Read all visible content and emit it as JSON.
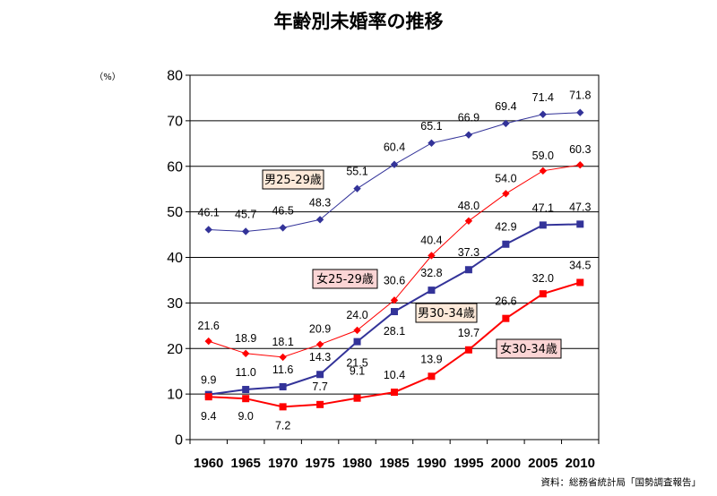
{
  "chart_data": {
    "type": "line",
    "title": "年齢別未婚率の推移",
    "unit": "（%）",
    "source": "資料：総務省統計局「国勢調査報告」",
    "ylim": [
      0,
      80
    ],
    "yticks": [
      "0",
      "10",
      "20",
      "30",
      "40",
      "50",
      "60",
      "70",
      "80"
    ],
    "grid": true,
    "categories": [
      "1960",
      "1965",
      "1970",
      "1975",
      "1980",
      "1985",
      "1990",
      "1995",
      "2000",
      "2005",
      "2010"
    ],
    "series": [
      {
        "name": "男25-29歳",
        "color": "#333399",
        "marker": "diamond",
        "line_width": 1,
        "label_bg": "#fde9d9",
        "values": [
          46.1,
          45.7,
          46.5,
          48.3,
          55.1,
          60.4,
          65.1,
          66.9,
          69.4,
          71.4,
          71.8
        ],
        "labels": [
          "46.1",
          "45.7",
          "46.5",
          "48.3",
          "55.1",
          "60.4",
          "65.1",
          "66.9",
          "69.4",
          "71.4",
          "71.8"
        ]
      },
      {
        "name": "女25-29歳",
        "color": "#ff0000",
        "marker": "diamond",
        "line_width": 1,
        "label_bg": "#fbd5d5",
        "values": [
          21.6,
          18.9,
          18.1,
          20.9,
          24.0,
          30.6,
          40.4,
          48.0,
          54.0,
          59.0,
          60.3
        ],
        "labels": [
          "21.6",
          "18.9",
          "18.1",
          "20.9",
          "24.0",
          "30.6",
          "40.4",
          "48.0",
          "54.0",
          "59.0",
          "60.3"
        ]
      },
      {
        "name": "男30-34歳",
        "color": "#333399",
        "marker": "square",
        "line_width": 2,
        "label_bg": "#fde9d9",
        "values": [
          9.9,
          11.0,
          11.6,
          14.3,
          21.5,
          28.1,
          32.8,
          37.3,
          42.9,
          47.1,
          47.3
        ],
        "labels": [
          "9.9",
          "11.0",
          "11.6",
          "14.3",
          "21.5",
          "28.1",
          "32.8",
          "37.3",
          "42.9",
          "47.1",
          "47.3"
        ]
      },
      {
        "name": "女30-34歳",
        "color": "#ff0000",
        "marker": "square",
        "line_width": 2,
        "label_bg": "#fbd5d5",
        "values": [
          9.4,
          9.0,
          7.2,
          7.7,
          9.1,
          10.4,
          13.9,
          19.7,
          26.6,
          32.0,
          34.5
        ],
        "labels": [
          "9.4",
          "9.0",
          "7.2",
          "7.7",
          "9.1",
          "10.4",
          "13.9",
          "19.7",
          "26.6",
          "32.0",
          "34.5"
        ]
      }
    ]
  }
}
